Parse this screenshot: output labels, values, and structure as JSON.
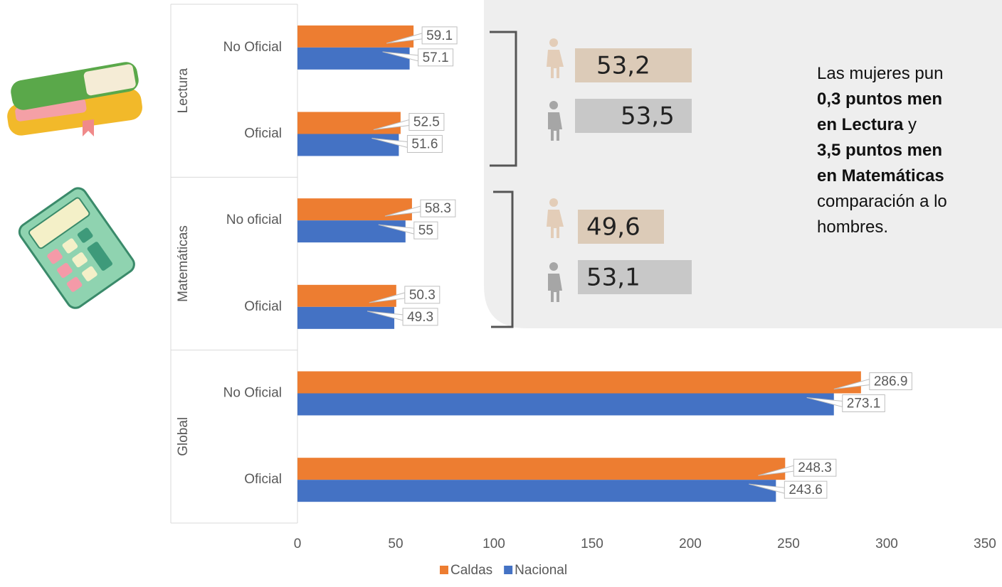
{
  "chart_data": {
    "type": "bar",
    "orientation": "horizontal",
    "groups": [
      "Lectura",
      "Matemáticas",
      "Global"
    ],
    "categories": [
      "No Oficial",
      "Oficial",
      "No oficial",
      "Oficial",
      "No Oficial",
      "Oficial"
    ],
    "series": [
      {
        "name": "Caldas",
        "color": "#ED7D31",
        "values": [
          59.1,
          52.5,
          58.3,
          50.3,
          286.9,
          248.3
        ]
      },
      {
        "name": "Nacional",
        "color": "#4472C4",
        "values": [
          57.1,
          51.6,
          55,
          49.3,
          273.1,
          243.6
        ]
      }
    ],
    "xlim": [
      0,
      350
    ],
    "xticks": [
      0,
      50,
      100,
      150,
      200,
      250,
      300,
      350
    ],
    "legend": "bottom"
  },
  "gender_panel": {
    "lectura": {
      "women": "53,2",
      "men": "53,5"
    },
    "matematicas": {
      "women": "49,6",
      "men": "53,1"
    },
    "text": {
      "line1": "Las mujeres pun",
      "bold1": "0,3 puntos men",
      "bold2": "en Lectura",
      "join": "y",
      "bold3": "3,5 puntos men",
      "bold4": "en Matemáticas",
      "line6": "comparación a lo",
      "line7": "hombres."
    }
  }
}
